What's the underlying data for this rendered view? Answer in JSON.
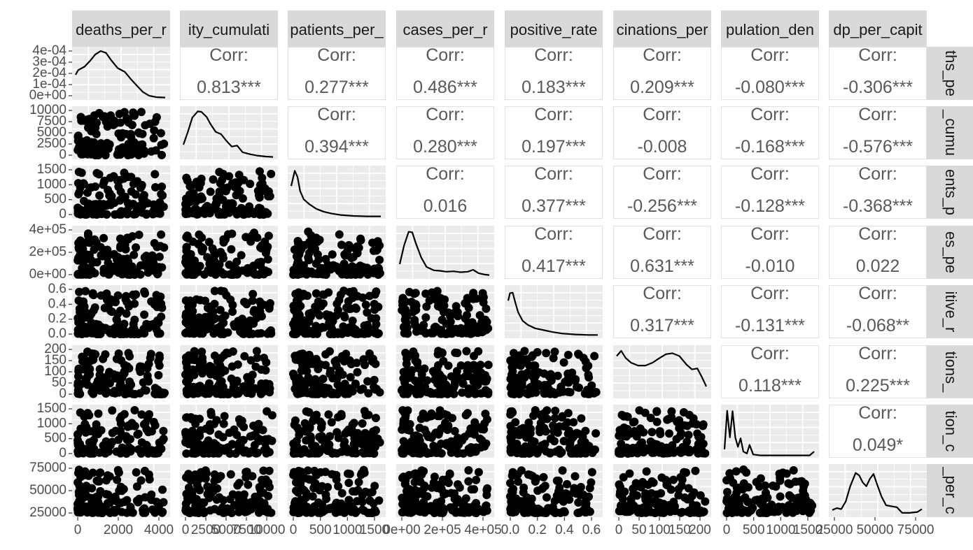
{
  "chart_data": {
    "type": "scatter-matrix",
    "variables": [
      "deaths_per_million",
      "mortality_cumulative",
      "hosp_patients_per_million",
      "cases_per_million",
      "positive_rate",
      "people_vaccinations_per_hundred",
      "population_density",
      "gdp_per_capita"
    ],
    "column_strip_labels": [
      "deaths_per_r",
      "ity_cumulati",
      "patients_per_",
      "cases_per_r",
      "positive_rate",
      "cinations_per",
      "pulation_den",
      "dp_per_capit"
    ],
    "row_strip_labels": [
      "ths_pe",
      "_cumu",
      "ents_p",
      "es_pe",
      "itive_r",
      "tions_",
      "tion_c",
      "_per_c"
    ],
    "correlation_label": "Corr:",
    "correlations": [
      [
        null,
        "0.813***",
        "0.277***",
        "0.486***",
        "0.183***",
        "0.209***",
        "-0.080***",
        "-0.306***"
      ],
      [
        null,
        null,
        "0.394***",
        "0.280***",
        "0.197***",
        "-0.008",
        "-0.168***",
        "-0.576***"
      ],
      [
        null,
        null,
        null,
        "0.016",
        "0.377***",
        "-0.256***",
        "-0.128***",
        "-0.368***"
      ],
      [
        null,
        null,
        null,
        null,
        "0.417***",
        "0.631***",
        "-0.010",
        "0.022"
      ],
      [
        null,
        null,
        null,
        null,
        null,
        "0.317***",
        "-0.131***",
        "-0.068**"
      ],
      [
        null,
        null,
        null,
        null,
        null,
        null,
        "0.118***",
        "0.225***"
      ],
      [
        null,
        null,
        null,
        null,
        null,
        null,
        null,
        "0.049*"
      ],
      [
        null,
        null,
        null,
        null,
        null,
        null,
        null,
        null
      ]
    ],
    "y_tick_labels": [
      [
        "4e-04",
        "3e-04",
        "2e-04",
        "1e-04",
        "0e+00"
      ],
      [
        "10000",
        "7500",
        "5000",
        "2500",
        "0"
      ],
      [
        "1500",
        "1000",
        "500",
        "0"
      ],
      [
        "4e+05",
        "2e+05",
        "0e+00"
      ],
      [
        "0.6",
        "0.4",
        "0.2",
        "0.0"
      ],
      [
        "200",
        "150",
        "100",
        "50",
        "0"
      ],
      [
        "1500",
        "1000",
        "500",
        "0"
      ],
      [
        "75000",
        "50000",
        "25000"
      ]
    ],
    "x_tick_labels": [
      [
        "0",
        "2000",
        "4000"
      ],
      [
        "0",
        "2500",
        "5000",
        "7500",
        "10000"
      ],
      [
        "0",
        "500",
        "1000",
        "1500"
      ],
      [
        "0e+00",
        "2e+05",
        "4e+05"
      ],
      [
        "0.0",
        "0.2",
        "0.4",
        "0.6"
      ],
      [
        "0",
        "50",
        "100",
        "150",
        "200"
      ],
      [
        "0",
        "500",
        "1000",
        "1500"
      ],
      [
        "25000",
        "50000",
        "75000"
      ]
    ],
    "density_shapes": [
      [
        [
          0,
          0.5
        ],
        [
          0.03,
          0.6
        ],
        [
          0.1,
          0.67
        ],
        [
          0.16,
          0.79
        ],
        [
          0.22,
          0.93
        ],
        [
          0.28,
          1.0
        ],
        [
          0.34,
          0.96
        ],
        [
          0.4,
          0.8
        ],
        [
          0.47,
          0.64
        ],
        [
          0.55,
          0.56
        ],
        [
          0.62,
          0.4
        ],
        [
          0.68,
          0.28
        ],
        [
          0.75,
          0.14
        ],
        [
          0.82,
          0.06
        ],
        [
          0.9,
          0.03
        ],
        [
          1,
          0.02
        ]
      ],
      [
        [
          0,
          0.28
        ],
        [
          0.05,
          0.55
        ],
        [
          0.1,
          0.85
        ],
        [
          0.16,
          0.98
        ],
        [
          0.2,
          0.97
        ],
        [
          0.26,
          0.86
        ],
        [
          0.3,
          0.72
        ],
        [
          0.36,
          0.55
        ],
        [
          0.42,
          0.5
        ],
        [
          0.48,
          0.36
        ],
        [
          0.54,
          0.24
        ],
        [
          0.6,
          0.26
        ],
        [
          0.66,
          0.12
        ],
        [
          0.74,
          0.08
        ],
        [
          0.82,
          0.05
        ],
        [
          0.92,
          0.03
        ],
        [
          1,
          0.02
        ]
      ],
      [
        [
          0,
          0.66
        ],
        [
          0.04,
          0.98
        ],
        [
          0.07,
          0.85
        ],
        [
          0.1,
          0.55
        ],
        [
          0.14,
          0.38
        ],
        [
          0.2,
          0.28
        ],
        [
          0.28,
          0.18
        ],
        [
          0.36,
          0.12
        ],
        [
          0.45,
          0.08
        ],
        [
          0.55,
          0.05
        ],
        [
          0.7,
          0.03
        ],
        [
          0.85,
          0.02
        ],
        [
          1,
          0.02
        ]
      ],
      [
        [
          0,
          0.28
        ],
        [
          0.05,
          0.68
        ],
        [
          0.1,
          0.96
        ],
        [
          0.14,
          0.95
        ],
        [
          0.18,
          0.72
        ],
        [
          0.24,
          0.42
        ],
        [
          0.3,
          0.22
        ],
        [
          0.38,
          0.15
        ],
        [
          0.45,
          0.14
        ],
        [
          0.52,
          0.12
        ],
        [
          0.6,
          0.13
        ],
        [
          0.68,
          0.11
        ],
        [
          0.76,
          0.12
        ],
        [
          0.82,
          0.16
        ],
        [
          0.88,
          0.09
        ],
        [
          0.95,
          0.06
        ],
        [
          1,
          0.05
        ]
      ],
      [
        [
          0,
          0.76
        ],
        [
          0.02,
          0.92
        ],
        [
          0.05,
          0.93
        ],
        [
          0.08,
          0.72
        ],
        [
          0.11,
          0.52
        ],
        [
          0.16,
          0.34
        ],
        [
          0.22,
          0.25
        ],
        [
          0.3,
          0.18
        ],
        [
          0.4,
          0.14
        ],
        [
          0.5,
          0.1
        ],
        [
          0.6,
          0.07
        ],
        [
          0.75,
          0.05
        ],
        [
          0.9,
          0.04
        ],
        [
          1,
          0.04
        ]
      ],
      [
        [
          0,
          0.86
        ],
        [
          0.05,
          0.97
        ],
        [
          0.1,
          0.82
        ],
        [
          0.16,
          0.72
        ],
        [
          0.24,
          0.66
        ],
        [
          0.32,
          0.66
        ],
        [
          0.4,
          0.72
        ],
        [
          0.48,
          0.82
        ],
        [
          0.55,
          0.9
        ],
        [
          0.62,
          0.92
        ],
        [
          0.7,
          0.86
        ],
        [
          0.78,
          0.68
        ],
        [
          0.84,
          0.58
        ],
        [
          0.9,
          0.6
        ],
        [
          0.95,
          0.42
        ],
        [
          1,
          0.22
        ]
      ],
      [
        [
          0,
          0.15
        ],
        [
          0.03,
          0.96
        ],
        [
          0.06,
          0.4
        ],
        [
          0.09,
          0.95
        ],
        [
          0.12,
          0.4
        ],
        [
          0.15,
          0.2
        ],
        [
          0.18,
          0.38
        ],
        [
          0.21,
          0.1
        ],
        [
          0.25,
          0.06
        ],
        [
          0.28,
          0.24
        ],
        [
          0.32,
          0.04
        ],
        [
          0.4,
          0.02
        ],
        [
          0.6,
          0.02
        ],
        [
          0.85,
          0.02
        ],
        [
          0.95,
          0.02
        ],
        [
          1,
          0.1
        ]
      ],
      [
        [
          0,
          0.12
        ],
        [
          0.05,
          0.16
        ],
        [
          0.1,
          0.14
        ],
        [
          0.15,
          0.3
        ],
        [
          0.2,
          0.62
        ],
        [
          0.26,
          0.9
        ],
        [
          0.3,
          0.85
        ],
        [
          0.34,
          0.7
        ],
        [
          0.38,
          0.62
        ],
        [
          0.42,
          0.78
        ],
        [
          0.46,
          0.88
        ],
        [
          0.5,
          0.66
        ],
        [
          0.55,
          0.4
        ],
        [
          0.6,
          0.22
        ],
        [
          0.66,
          0.2
        ],
        [
          0.72,
          0.18
        ],
        [
          0.78,
          0.06
        ],
        [
          0.86,
          0.06
        ],
        [
          0.95,
          0.08
        ],
        [
          1,
          0.14
        ]
      ]
    ]
  }
}
